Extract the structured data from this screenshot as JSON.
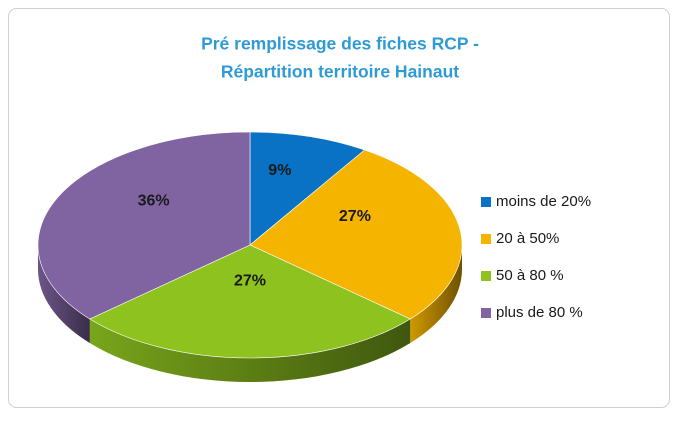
{
  "chart_data": {
    "type": "pie3d",
    "title": [
      "Pré remplissage des fiches RCP -",
      "Répartition territoire Hainaut"
    ],
    "categories": [
      "moins de 20%",
      "20 à 50%",
      "50 à 80 %",
      "plus de 80 %"
    ],
    "values": [
      9,
      27,
      27,
      36
    ],
    "value_labels": [
      "9%",
      "27%",
      "27%",
      "36%"
    ],
    "colors": [
      "#0a72c4",
      "#f5b400",
      "#8dc21f",
      "#8064a2"
    ],
    "legend": "right"
  }
}
